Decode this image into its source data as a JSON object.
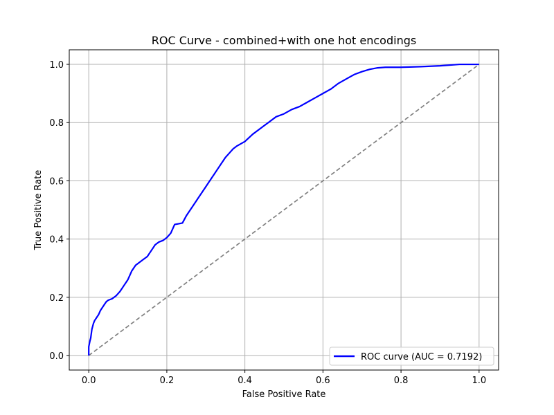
{
  "chart_data": {
    "type": "line",
    "title": "ROC Curve - combined+with one hot encodings",
    "xlabel": "False Positive Rate",
    "ylabel": "True Positive Rate",
    "xlim": [
      -0.05,
      1.05
    ],
    "ylim": [
      -0.05,
      1.05
    ],
    "xticks": [
      "0.0",
      "0.2",
      "0.4",
      "0.6",
      "0.8",
      "1.0"
    ],
    "yticks": [
      "0.0",
      "0.2",
      "0.4",
      "0.6",
      "0.8",
      "1.0"
    ],
    "grid": true,
    "legend_position": "lower-right",
    "series": [
      {
        "name": "ROC curve (AUC = 0.7192)",
        "color": "#0000ff",
        "style": "solid",
        "x": [
          0,
          0,
          0.003,
          0.005,
          0.008,
          0.012,
          0.015,
          0.02,
          0.025,
          0.03,
          0.035,
          0.04,
          0.045,
          0.05,
          0.06,
          0.07,
          0.08,
          0.09,
          0.1,
          0.11,
          0.12,
          0.13,
          0.14,
          0.15,
          0.16,
          0.17,
          0.18,
          0.19,
          0.2,
          0.21,
          0.22,
          0.24,
          0.25,
          0.26,
          0.27,
          0.28,
          0.29,
          0.3,
          0.31,
          0.32,
          0.33,
          0.34,
          0.35,
          0.36,
          0.37,
          0.38,
          0.4,
          0.42,
          0.44,
          0.46,
          0.48,
          0.5,
          0.52,
          0.54,
          0.56,
          0.58,
          0.6,
          0.62,
          0.64,
          0.66,
          0.68,
          0.7,
          0.72,
          0.74,
          0.76,
          0.8,
          0.85,
          0.9,
          0.95,
          1.0
        ],
        "y": [
          0,
          0.03,
          0.05,
          0.06,
          0.09,
          0.11,
          0.12,
          0.13,
          0.14,
          0.155,
          0.165,
          0.175,
          0.185,
          0.19,
          0.195,
          0.205,
          0.22,
          0.24,
          0.26,
          0.29,
          0.31,
          0.32,
          0.33,
          0.34,
          0.36,
          0.38,
          0.39,
          0.395,
          0.405,
          0.42,
          0.45,
          0.455,
          0.48,
          0.5,
          0.52,
          0.54,
          0.56,
          0.58,
          0.6,
          0.62,
          0.64,
          0.66,
          0.68,
          0.695,
          0.71,
          0.72,
          0.735,
          0.76,
          0.78,
          0.8,
          0.82,
          0.83,
          0.845,
          0.855,
          0.87,
          0.885,
          0.9,
          0.915,
          0.935,
          0.95,
          0.965,
          0.975,
          0.983,
          0.988,
          0.99,
          0.99,
          0.992,
          0.995,
          1.0,
          1.0
        ]
      },
      {
        "name": "",
        "color": "#808080",
        "style": "dashed",
        "x": [
          0,
          1
        ],
        "y": [
          0,
          1
        ]
      }
    ]
  }
}
